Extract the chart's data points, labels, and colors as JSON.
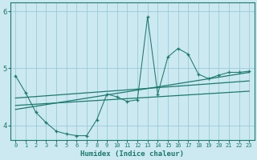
{
  "xlabel": "Humidex (Indice chaleur)",
  "bg_color": "#cce8f0",
  "grid_color": "#99ccd9",
  "line_color": "#1a7a6e",
  "xlim": [
    -0.5,
    23.5
  ],
  "ylim": [
    3.75,
    6.15
  ],
  "yticks": [
    4,
    5,
    6
  ],
  "xticks": [
    0,
    1,
    2,
    3,
    4,
    5,
    6,
    7,
    8,
    9,
    10,
    11,
    12,
    13,
    14,
    15,
    16,
    17,
    18,
    19,
    20,
    21,
    22,
    23
  ],
  "main_x": [
    0,
    1,
    2,
    3,
    4,
    5,
    6,
    7,
    8,
    9,
    10,
    11,
    12,
    13,
    14,
    15,
    16,
    17,
    18,
    19,
    20,
    21,
    22,
    23
  ],
  "main_y": [
    4.87,
    4.57,
    4.23,
    4.05,
    3.9,
    3.85,
    3.82,
    3.82,
    4.1,
    4.55,
    4.5,
    4.42,
    4.45,
    5.9,
    4.55,
    5.2,
    5.35,
    5.25,
    4.9,
    4.82,
    4.88,
    4.93,
    4.93,
    4.95
  ],
  "trend1_x": [
    0,
    23
  ],
  "trend1_y": [
    4.35,
    4.6
  ],
  "trend2_x": [
    0,
    23
  ],
  "trend2_y": [
    4.48,
    4.78
  ],
  "trend3_x": [
    0,
    23
  ],
  "trend3_y": [
    4.28,
    4.93
  ]
}
